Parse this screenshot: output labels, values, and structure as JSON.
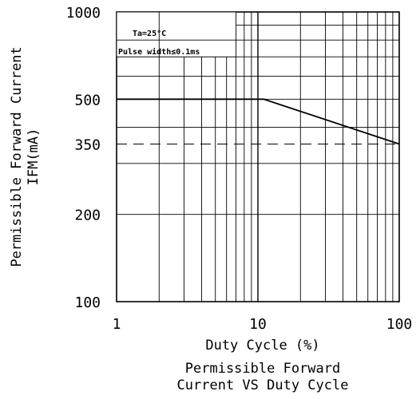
{
  "chart_data": {
    "type": "line",
    "title": "Permissible Forward Current VS Duty Cycle",
    "title_lines": [
      "Permissible Forward",
      "Current VS Duty Cycle"
    ],
    "xlabel": "Duty Cycle (%)",
    "ylabel_lines": [
      "Permissible Forward Current",
      "IFM(mA)"
    ],
    "x_scale": "log",
    "y_scale": "log",
    "xlim": [
      1,
      100
    ],
    "ylim": [
      100,
      1000
    ],
    "x_ticks": [
      1,
      10,
      100
    ],
    "y_ticks": [
      100,
      200,
      350,
      500,
      1000
    ],
    "grid": true,
    "annotations": [
      "Ta=25°C",
      "Pulse width≤0.1ms"
    ],
    "series": [
      {
        "style": "solid",
        "x": [
          1,
          11,
          100
        ],
        "y": [
          500,
          500,
          350
        ]
      },
      {
        "style": "dashed",
        "x": [
          1,
          100
        ],
        "y": [
          350,
          350
        ]
      }
    ],
    "colors": {
      "line": "#000000",
      "grid": "#000000"
    }
  }
}
